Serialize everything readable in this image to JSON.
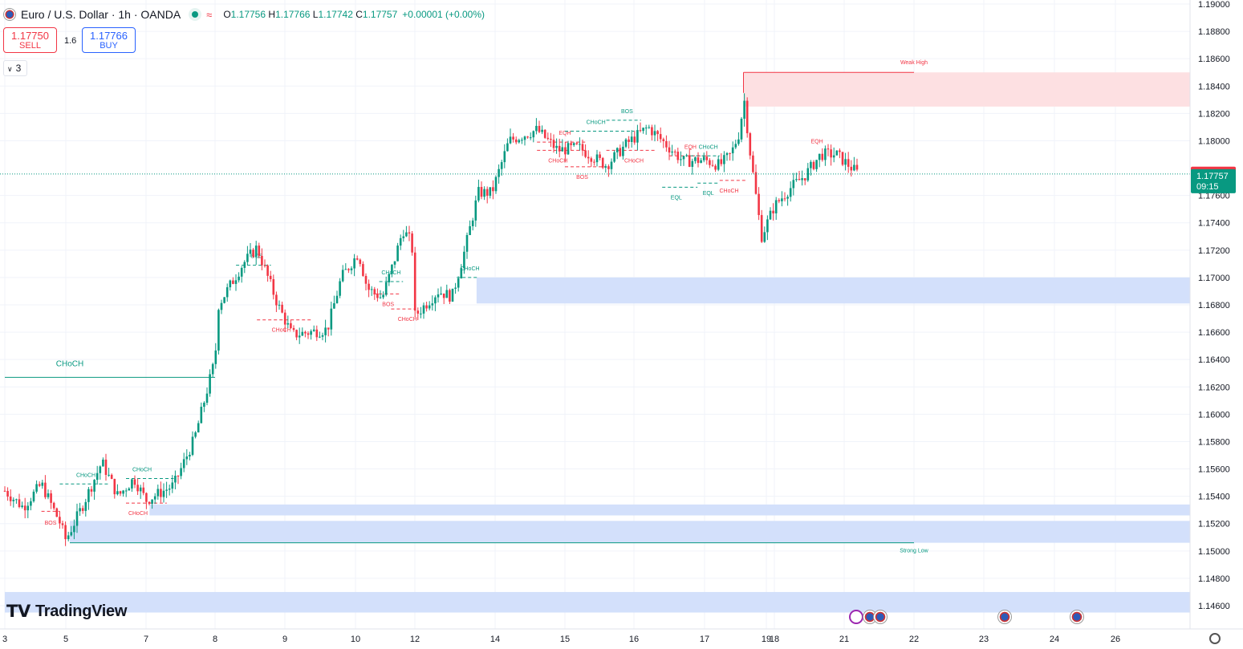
{
  "header": {
    "symbol": "Euro / U.S. Dollar · 1h · OANDA",
    "open_label": "O",
    "open": "1.17756",
    "high_label": "H",
    "high": "1.17766",
    "low_label": "L",
    "low": "1.17742",
    "close_label": "C",
    "close": "1.17757",
    "change": "+0.00001 (+0.00%)"
  },
  "trade": {
    "sell_price": "1.17750",
    "sell_label": "SELL",
    "buy_price": "1.17766",
    "buy_label": "BUY",
    "spread": "1.6"
  },
  "indicators": {
    "count": "3"
  },
  "branding": {
    "logo_text": "TradingView"
  },
  "colors": {
    "up": "#089981",
    "down": "#f23645",
    "zone_blue": "#d3e0fb",
    "zone_red": "#fde0e2"
  },
  "chart_data": {
    "type": "candlestick",
    "y_range": [
      1.1448,
      1.1905
    ],
    "y_ticks": [
      "1.19000",
      "1.18800",
      "1.18600",
      "1.18400",
      "1.18200",
      "1.18000",
      "1.17600",
      "1.17400",
      "1.17200",
      "1.17000",
      "1.16800",
      "1.16600",
      "1.16400",
      "1.16200",
      "1.16000",
      "1.15800",
      "1.15600",
      "1.15400",
      "1.15200",
      "1.15000",
      "1.14800",
      "1.14600"
    ],
    "x_ticks": [
      "3",
      "5",
      "7",
      "8",
      "9",
      "10",
      "12",
      "14",
      "15",
      "16",
      "17",
      "18",
      "19",
      "21",
      "22",
      "23",
      "24",
      "26"
    ],
    "last_price": {
      "value": "1.17757",
      "countdown": "09:15"
    },
    "ask_price": "1.17758",
    "path": [
      [
        3,
        1.1544
      ],
      [
        3.6,
        1.1532
      ],
      [
        4.2,
        1.1549
      ],
      [
        4.8,
        1.1521
      ],
      [
        5.0,
        1.1508
      ],
      [
        5.4,
        1.1532
      ],
      [
        5.9,
        1.1565
      ],
      [
        6.3,
        1.154
      ],
      [
        6.7,
        1.1553
      ],
      [
        7.0,
        1.1537
      ],
      [
        7.4,
        1.1548
      ],
      [
        7.7,
        1.1582
      ],
      [
        8.0,
        1.164
      ],
      [
        8.05,
        1.168
      ],
      [
        8.4,
        1.171
      ],
      [
        8.6,
        1.1722
      ],
      [
        8.9,
        1.168
      ],
      [
        9.1,
        1.1658
      ],
      [
        9.6,
        1.1662
      ],
      [
        9.8,
        1.17
      ],
      [
        10.1,
        1.1718
      ],
      [
        10.4,
        1.1692
      ],
      [
        10.9,
        1.1685
      ],
      [
        11.3,
        1.1712
      ],
      [
        11.6,
        1.1735
      ],
      [
        11.9,
        1.1725
      ],
      [
        12.0,
        1.1672
      ],
      [
        12.5,
        1.169
      ],
      [
        12.8,
        1.1686
      ],
      [
        13.1,
        1.172
      ],
      [
        13.5,
        1.1762
      ],
      [
        13.9,
        1.1762
      ],
      [
        14.2,
        1.18
      ],
      [
        14.6,
        1.1808
      ],
      [
        14.9,
        1.1793
      ],
      [
        15.2,
        1.1795
      ],
      [
        15.6,
        1.1782
      ],
      [
        15.9,
        1.1798
      ],
      [
        16.2,
        1.181
      ],
      [
        16.4,
        1.18
      ],
      [
        16.7,
        1.1785
      ],
      [
        17.0,
        1.1786
      ],
      [
        17.4,
        1.1782
      ],
      [
        17.7,
        1.179
      ],
      [
        17.95,
        1.1808
      ],
      [
        18.05,
        1.1835
      ],
      [
        18.3,
        1.1795
      ],
      [
        18.55,
        1.1762
      ],
      [
        18.8,
        1.173
      ],
      [
        19.2,
        1.1752
      ],
      [
        19.6,
        1.1765
      ],
      [
        20.0,
        1.1775
      ],
      [
        20.4,
        1.179
      ],
      [
        20.8,
        1.179
      ],
      [
        21.2,
        1.1776
      ]
    ]
  },
  "zones": [
    {
      "kind": "supply",
      "x": [
        18.05,
        26.9
      ],
      "y": [
        1.1825,
        1.185
      ]
    },
    {
      "kind": "demand",
      "x": [
        13.45,
        26.9
      ],
      "y": [
        1.1681,
        1.17
      ]
    },
    {
      "kind": "demand",
      "x": [
        7.05,
        26.9
      ],
      "y": [
        1.1526,
        1.1534
      ]
    },
    {
      "kind": "demand",
      "x": [
        5.1,
        26.9
      ],
      "y": [
        1.1506,
        1.1522
      ]
    },
    {
      "kind": "demand",
      "x": [
        3,
        26.9
      ],
      "y": [
        1.1455,
        1.147
      ]
    }
  ],
  "structure_lines": [
    {
      "x": [
        3,
        8
      ],
      "y": 1.1627,
      "color": "#089981",
      "dash": false,
      "label": "CHoCH",
      "lx": 5.1,
      "ly": 1.1635
    },
    {
      "x": [
        5.1,
        22
      ],
      "y": 1.1506,
      "color": "#089981",
      "dash": false,
      "label": "Strong Low",
      "lx": 22.0,
      "ly": 1.1499
    },
    {
      "x": [
        18.05,
        22
      ],
      "y": 1.185,
      "color": "#f23645",
      "dash": false,
      "label": "Weak High",
      "lx": 22.0,
      "ly": 1.1856
    }
  ],
  "marks": [
    {
      "label": "BOS",
      "x": 4.5,
      "y": 1.1529,
      "color": "#f23645",
      "ly": 1.1521,
      "x1": 4.2,
      "x2": 4.8
    },
    {
      "label": "CHoCH",
      "x": 5.5,
      "y": 1.1549,
      "color": "#089981",
      "ly": 1.1556,
      "x1": 4.8,
      "x2": 6.1
    },
    {
      "label": "CHoCH",
      "x": 6.9,
      "y": 1.1553,
      "color": "#089981",
      "ly": 1.156,
      "x1": 6.5,
      "x2": 7.4
    },
    {
      "label": "CHoCH",
      "x": 6.8,
      "y": 1.1535,
      "color": "#f23645",
      "ly": 1.1528,
      "x1": 6.5,
      "x2": 7.3
    },
    {
      "label": "BOS",
      "x": 8.6,
      "y": 1.1709,
      "color": "#089981",
      "ly": 1.1716,
      "x1": 8.3,
      "x2": 8.8
    },
    {
      "label": "CHoCH",
      "x": 8.95,
      "y": 1.1669,
      "color": "#f23645",
      "ly": 1.1662,
      "x1": 8.6,
      "x2": 9.4
    },
    {
      "label": "CHoCH",
      "x": 11.2,
      "y": 1.1697,
      "color": "#089981",
      "ly": 1.1704,
      "x1": 10.8,
      "x2": 11.6
    },
    {
      "label": "BOS",
      "x": 11.1,
      "y": 1.1688,
      "color": "#f23645",
      "ly": 1.1681,
      "x1": 10.6,
      "x2": 11.5
    },
    {
      "label": "CHoCH",
      "x": 11.75,
      "y": 1.1677,
      "color": "#f23645",
      "ly": 1.167,
      "x1": 11.2,
      "x2": 12.0
    },
    {
      "label": "CHoCH",
      "x": 13.25,
      "y": 1.17,
      "color": "#089981",
      "ly": 1.1707,
      "x1": 12.9,
      "x2": 13.5
    },
    {
      "label": "EQH",
      "x": 15.0,
      "y": 1.1799,
      "color": "#f23645",
      "ly": 1.1806,
      "x1": 14.6,
      "x2": 15.3
    },
    {
      "label": "CHoCH",
      "x": 14.9,
      "y": 1.1793,
      "color": "#f23645",
      "ly": 1.1786,
      "x1": 14.6,
      "x2": 15.3
    },
    {
      "label": "BOS",
      "x": 15.25,
      "y": 1.1781,
      "color": "#f23645",
      "ly": 1.1774,
      "x1": 15.0,
      "x2": 15.6
    },
    {
      "label": "CHoCH",
      "x": 15.45,
      "y": 1.1807,
      "color": "#089981",
      "ly": 1.1814,
      "x1": 15.0,
      "x2": 16.0
    },
    {
      "label": "BOS",
      "x": 15.9,
      "y": 1.1815,
      "color": "#089981",
      "ly": 1.1822,
      "x1": 15.6,
      "x2": 16.1
    },
    {
      "label": "CHoCH",
      "x": 16.0,
      "y": 1.1793,
      "color": "#f23645",
      "ly": 1.1786,
      "x1": 15.6,
      "x2": 16.3
    },
    {
      "label": "EQH",
      "x": 16.8,
      "y": 1.1789,
      "color": "#f23645",
      "ly": 1.1796,
      "x1": 16.5,
      "x2": 17.1
    },
    {
      "label": "EQL",
      "x": 16.6,
      "y": 1.1766,
      "color": "#089981",
      "ly": 1.1759,
      "x1": 16.4,
      "x2": 16.9
    },
    {
      "label": "CHoCH",
      "x": 17.1,
      "y": 1.1789,
      "color": "#089981",
      "ly": 1.1796,
      "x1": 16.8,
      "x2": 17.4
    },
    {
      "label": "EQL",
      "x": 17.1,
      "y": 1.1769,
      "color": "#089981",
      "ly": 1.1762,
      "x1": 16.9,
      "x2": 17.4
    },
    {
      "label": "CHoCH",
      "x": 17.65,
      "y": 1.1771,
      "color": "#f23645",
      "ly": 1.1764,
      "x1": 17.4,
      "x2": 18.2
    },
    {
      "label": "EQH",
      "x": 20.3,
      "y": 1.1793,
      "color": "#f23645",
      "ly": 1.18,
      "x1": 20.3,
      "x2": 20.3
    }
  ]
}
